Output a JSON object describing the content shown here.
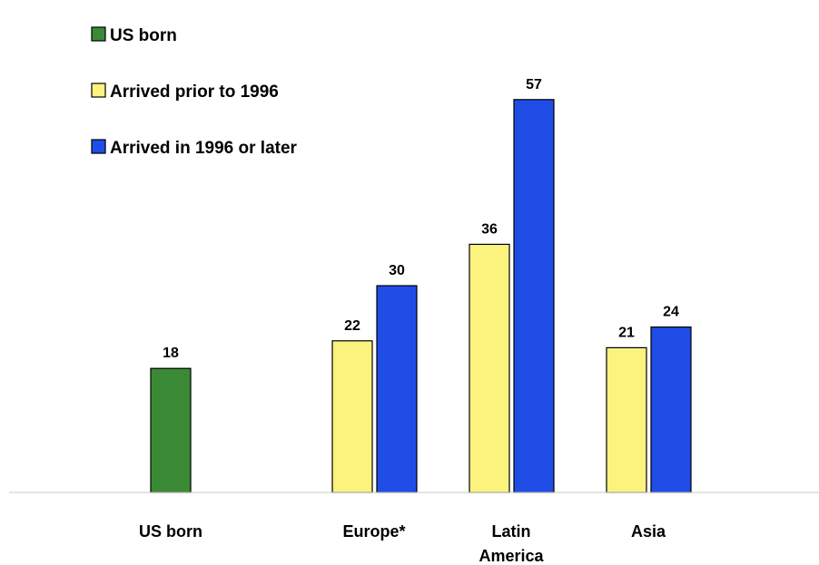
{
  "chart_data": {
    "type": "bar",
    "categories": [
      "US born",
      "Europe*",
      "Latin America",
      "Asia"
    ],
    "category_lines": [
      [
        "US born"
      ],
      [
        "Europe*"
      ],
      [
        "Latin",
        "America"
      ],
      [
        "Asia"
      ]
    ],
    "series": [
      {
        "name": "US born",
        "color": "#3a8a35",
        "values": [
          18,
          null,
          null,
          null
        ]
      },
      {
        "name": "Arrived prior to 1996",
        "color": "#fbf37e",
        "values": [
          null,
          22,
          36,
          21
        ]
      },
      {
        "name": "Arrived in 1996 or later",
        "color": "#1f4de6",
        "values": [
          null,
          30,
          57,
          24
        ]
      }
    ],
    "legend": {
      "position": "top-left"
    },
    "show_data_labels": true,
    "grid": false,
    "xlabel": "",
    "ylabel": ""
  }
}
